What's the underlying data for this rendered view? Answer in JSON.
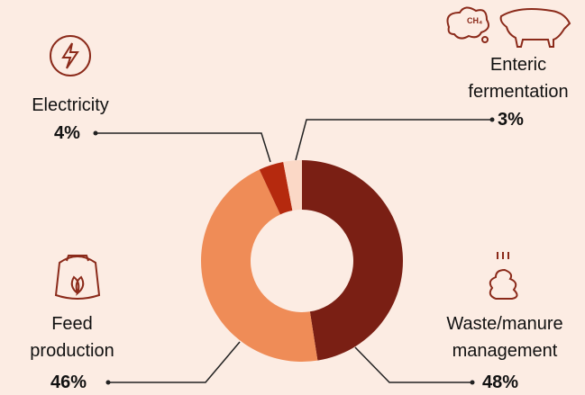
{
  "chart_data": {
    "type": "donut",
    "categories": [
      "Waste/manure management",
      "Feed production",
      "Electricity",
      "Enteric fermentation"
    ],
    "values": [
      48,
      46,
      4,
      3
    ],
    "value_labels": [
      "48%",
      "46%",
      "4%",
      "3%"
    ],
    "colors": [
      "#7a1f14",
      "#ef8c57",
      "#b5290e",
      "#fbd8c6"
    ]
  }
}
